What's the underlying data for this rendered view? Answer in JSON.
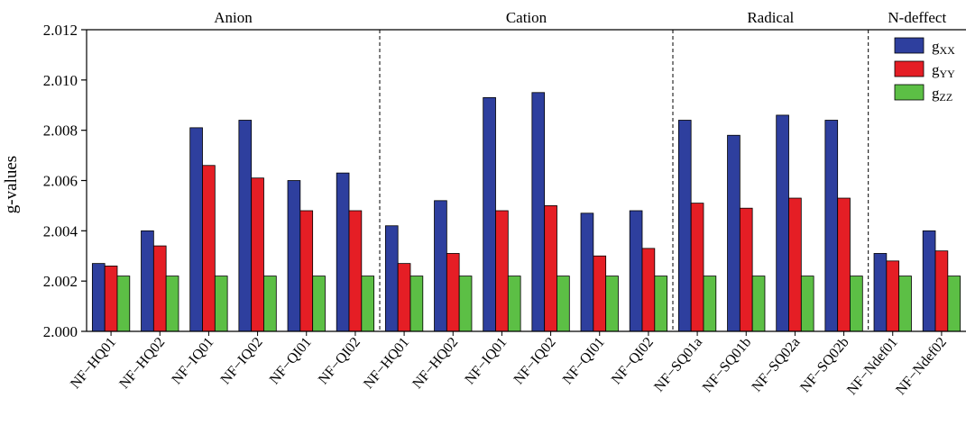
{
  "chart_data": {
    "type": "bar",
    "ylabel": "g-values",
    "ylim": [
      2.0,
      2.012
    ],
    "yticks": [
      "2.000",
      "2.002",
      "2.004",
      "2.006",
      "2.008",
      "2.010",
      "2.012"
    ],
    "grid": false,
    "legend_position": "top-right",
    "groups": [
      {
        "label": "Anion",
        "count": 6
      },
      {
        "label": "Cation",
        "count": 6
      },
      {
        "label": "Radical",
        "count": 4
      },
      {
        "label": "N-deffect",
        "count": 2
      }
    ],
    "categories": [
      "NF−HQ01",
      "NF−HQ02",
      "NF−IQ01",
      "NF−IQ02",
      "NF−QI01",
      "NF−QI02",
      "NF−HQ01",
      "NF−HQ02",
      "NF−IQ01",
      "NF−IQ02",
      "NF−QI01",
      "NF−QI02",
      "NF−SQ01a",
      "NF−SQ01b",
      "NF−SQ02a",
      "NF−SQ02b",
      "NF−Ndef01",
      "NF−Ndef02"
    ],
    "series": [
      {
        "name": "g",
        "sub": "XX",
        "color": "#2e3f9e",
        "values": [
          2.0027,
          2.004,
          2.0081,
          2.0084,
          2.006,
          2.0063,
          2.0042,
          2.0052,
          2.0093,
          2.0095,
          2.0047,
          2.0048,
          2.0084,
          2.0078,
          2.0086,
          2.0084,
          2.0031,
          2.004
        ]
      },
      {
        "name": "g",
        "sub": "YY",
        "color": "#e51e25",
        "values": [
          2.0026,
          2.0034,
          2.0066,
          2.0061,
          2.0048,
          2.0048,
          2.0027,
          2.0031,
          2.0048,
          2.005,
          2.003,
          2.0033,
          2.0051,
          2.0049,
          2.0053,
          2.0053,
          2.0028,
          2.0032
        ]
      },
      {
        "name": "g",
        "sub": "ZZ",
        "color": "#5cbf45",
        "values": [
          2.0022,
          2.0022,
          2.0022,
          2.0022,
          2.0022,
          2.0022,
          2.0022,
          2.0022,
          2.0022,
          2.0022,
          2.0022,
          2.0022,
          2.0022,
          2.0022,
          2.0022,
          2.0022,
          2.0022,
          2.0022
        ]
      }
    ]
  }
}
